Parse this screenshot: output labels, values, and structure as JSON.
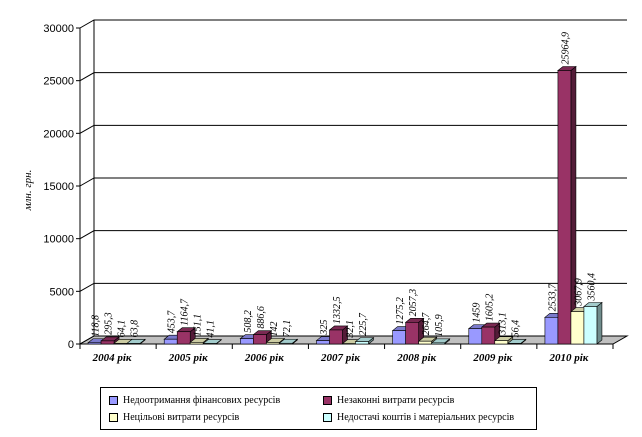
{
  "chart_data": {
    "type": "bar",
    "ylabel": "млн. грн.",
    "ylim": [
      0,
      30000
    ],
    "yticks": [
      0,
      5000,
      10000,
      15000,
      20000,
      25000,
      30000
    ],
    "grid": true,
    "legend_position": "bottom",
    "categories": [
      "2004 рік",
      "2005 рік",
      "2006 рік",
      "2007 рік",
      "2008 рік",
      "2009 рік",
      "2010 рік"
    ],
    "series": [
      {
        "name": "Недоотримання фінансових ресурсів",
        "color": "#9999ff",
        "values": [
          118.8,
          453.7,
          508.2,
          325,
          1275.2,
          1459,
          2533.7
        ],
        "labels": [
          "118,8",
          "453,7",
          "508,2",
          "325",
          "1275,2",
          "1459",
          "2533,7"
        ]
      },
      {
        "name": "Незаконні витрати ресурсів",
        "color": "#993366",
        "values": [
          295.3,
          1164.7,
          886.6,
          1332.5,
          2057.3,
          1605.2,
          25964.9
        ],
        "labels": [
          "295,3",
          "1164,7",
          "886,6",
          "1332,5",
          "2057,3",
          "1605,2",
          "25964,9"
        ]
      },
      {
        "name": "Нецільові витрати ресурсів",
        "color": "#ffffcc",
        "values": [
          64.1,
          151.1,
          142,
          32.1,
          264.7,
          313.1,
          3067.9
        ],
        "labels": [
          "64,1",
          "151,1",
          "142",
          "32,1",
          "264,7",
          "313,1",
          "3067,9"
        ]
      },
      {
        "name": "Недостачі коштів і матеріальних ресурсів",
        "color": "#ccffff",
        "values": [
          63.8,
          41.1,
          72.1,
          225.7,
          105.9,
          56.4,
          3560.4
        ],
        "labels": [
          "63,8",
          "41,1",
          "72,1",
          "225,7",
          "105,9",
          "56,4",
          "3560,4"
        ]
      }
    ]
  }
}
